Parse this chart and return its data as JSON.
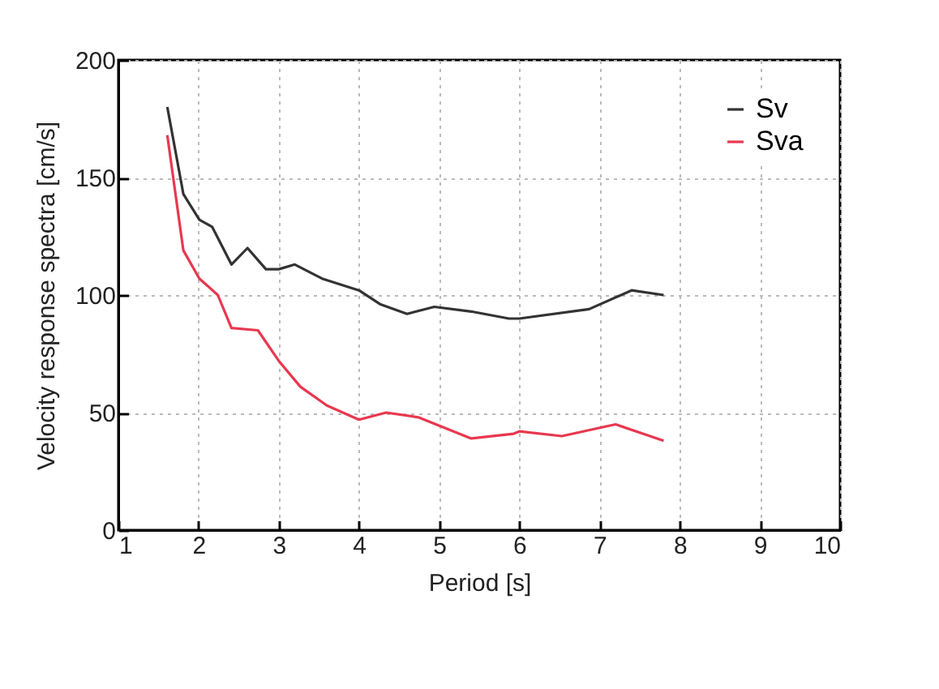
{
  "chart_data": {
    "type": "line",
    "xlabel": "Period [s]",
    "ylabel": "Velocity response spectra [cm/s]",
    "xlim": [
      1,
      10
    ],
    "xticks": [
      1,
      2,
      3,
      4,
      5,
      6,
      7,
      8,
      9,
      10
    ],
    "ylim": [
      0,
      200
    ],
    "yticks": [
      0,
      50,
      100,
      150,
      200
    ],
    "grid": true,
    "legend": "top right",
    "line_style": "solid",
    "marker": "none",
    "series": [
      {
        "name": "Sv",
        "color": "#333333",
        "x": [
          1.61,
          1.81,
          2.01,
          2.17,
          2.41,
          2.61,
          2.84,
          3.0,
          3.2,
          3.54,
          4.0,
          4.27,
          4.6,
          4.94,
          5.4,
          5.87,
          6.0,
          6.87,
          7.4,
          7.8
        ],
        "values": [
          180,
          143,
          132,
          129,
          113,
          120,
          111,
          111,
          113,
          107,
          102,
          96,
          92,
          95,
          93,
          90,
          90,
          94,
          102,
          100
        ]
      },
      {
        "name": "Sva",
        "color": "#e8384f",
        "x": [
          1.61,
          1.81,
          2.01,
          2.24,
          2.41,
          2.74,
          3.0,
          3.27,
          3.6,
          4.0,
          4.34,
          4.74,
          5.4,
          5.93,
          6.0,
          6.53,
          7.2,
          7.8
        ],
        "values": [
          168,
          119,
          107,
          100,
          86,
          85,
          72,
          61,
          53,
          47,
          50,
          48,
          39,
          41,
          42,
          40,
          45,
          38
        ]
      }
    ]
  }
}
